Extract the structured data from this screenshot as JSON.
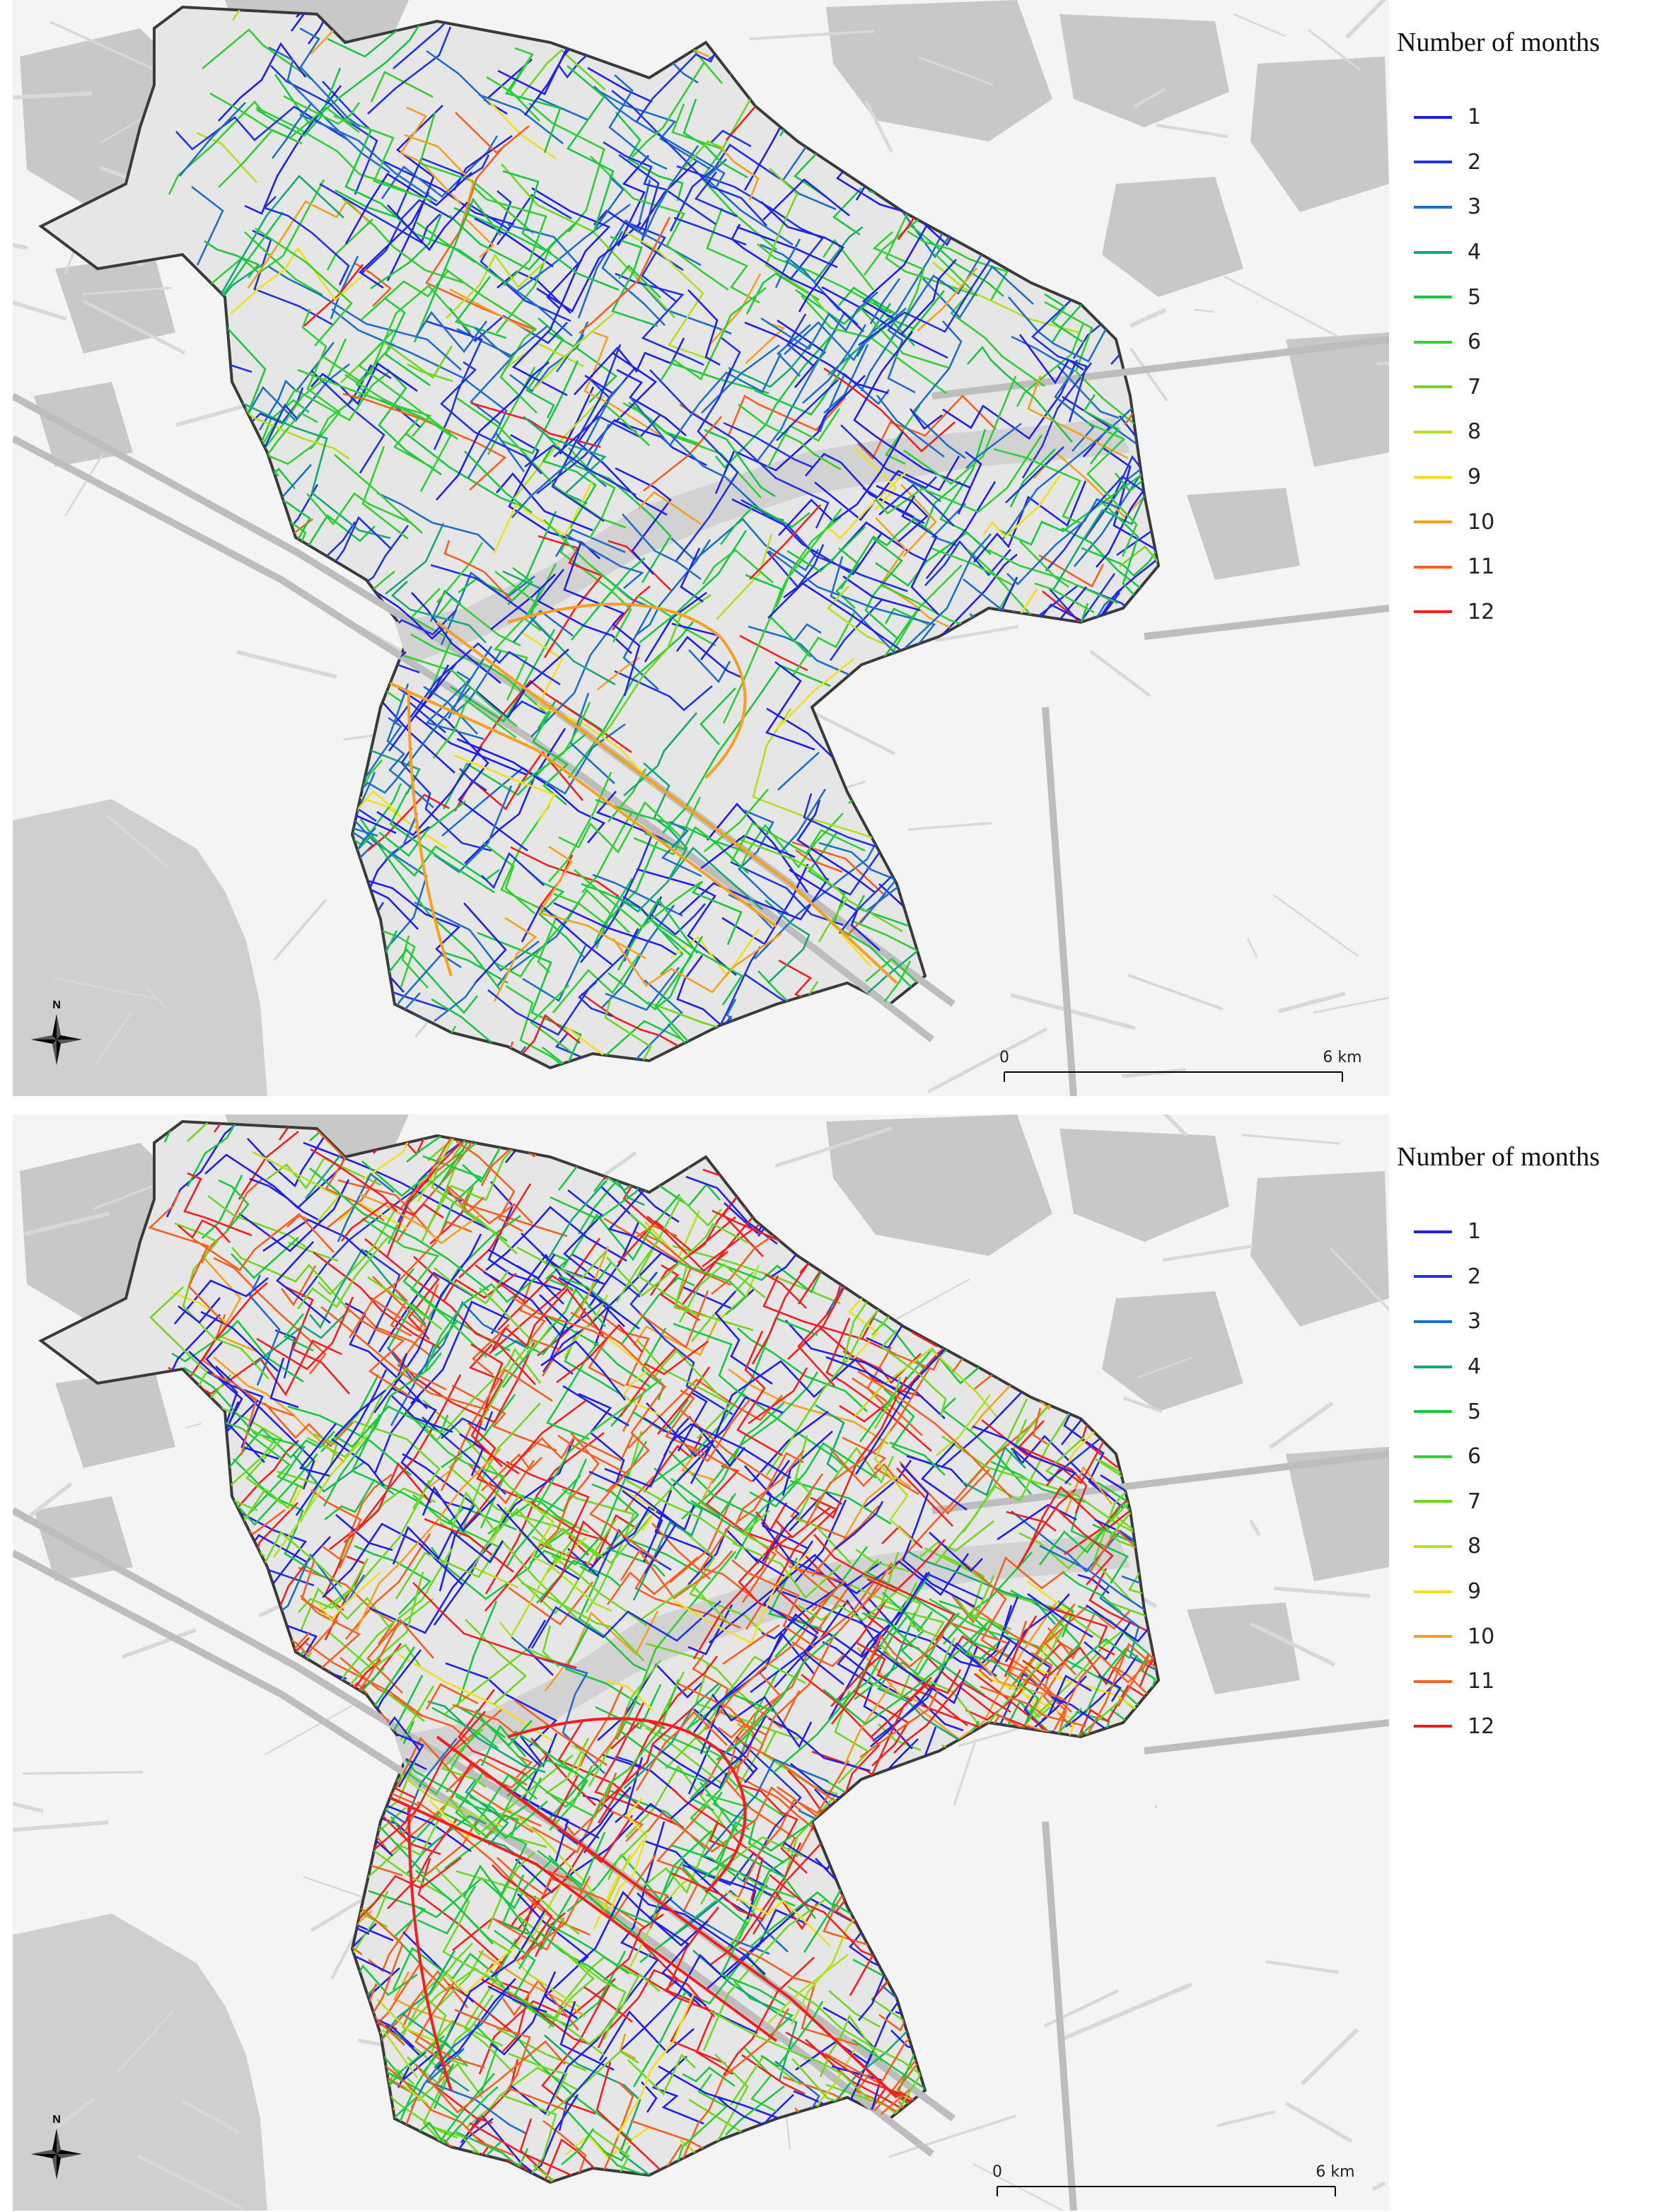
{
  "panels": [
    {
      "legend": {
        "title": "Number of months",
        "items": [
          {
            "label": "1",
            "color": "#2020e8"
          },
          {
            "label": "2",
            "color": "#2035e0"
          },
          {
            "label": "3",
            "color": "#1e6fc8"
          },
          {
            "label": "4",
            "color": "#14a878"
          },
          {
            "label": "5",
            "color": "#18c840"
          },
          {
            "label": "6",
            "color": "#30d030"
          },
          {
            "label": "7",
            "color": "#6ed820"
          },
          {
            "label": "8",
            "color": "#b4e020"
          },
          {
            "label": "9",
            "color": "#f0e020"
          },
          {
            "label": "10",
            "color": "#f4a020"
          },
          {
            "label": "11",
            "color": "#f46020"
          },
          {
            "label": "12",
            "color": "#f02020"
          }
        ]
      },
      "scale_bar": {
        "start_label": "0",
        "end_label": "6 km"
      },
      "north_arrow": {
        "label": "N"
      },
      "dominant_classes": [
        1,
        2,
        5,
        6,
        3
      ]
    },
    {
      "legend": {
        "title": "Number of months",
        "items": [
          {
            "label": "1",
            "color": "#2020e8"
          },
          {
            "label": "2",
            "color": "#2035e0"
          },
          {
            "label": "3",
            "color": "#1e6fc8"
          },
          {
            "label": "4",
            "color": "#14a878"
          },
          {
            "label": "5",
            "color": "#18c840"
          },
          {
            "label": "6",
            "color": "#30d030"
          },
          {
            "label": "7",
            "color": "#6ed820"
          },
          {
            "label": "8",
            "color": "#b4e020"
          },
          {
            "label": "9",
            "color": "#f0e020"
          },
          {
            "label": "10",
            "color": "#f4a020"
          },
          {
            "label": "11",
            "color": "#f46020"
          },
          {
            "label": "12",
            "color": "#f02020"
          }
        ]
      },
      "scale_bar": {
        "start_label": "0",
        "end_label": "6 km"
      },
      "north_arrow": {
        "label": "N"
      },
      "dominant_classes": [
        12,
        11,
        1,
        5,
        7
      ]
    }
  ],
  "colors": {
    "map_background": "#f4f4f4",
    "terrain": "#c8c8c8",
    "district_fill": "#e6e6e6",
    "boundary": "#3a3a3a",
    "river": "#d2d2d2",
    "sea": "#cfcfcf"
  }
}
